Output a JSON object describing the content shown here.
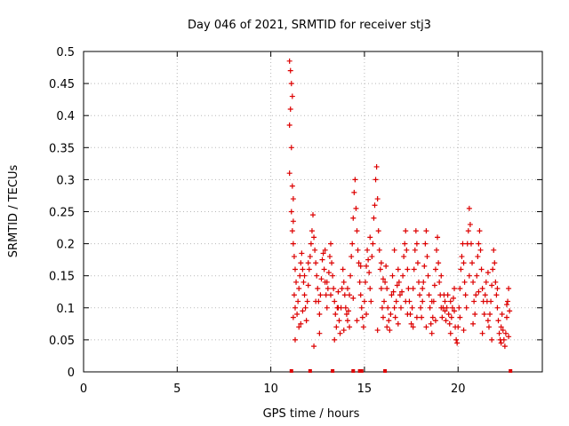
{
  "chart_data": {
    "type": "scatter",
    "title": "Day 046 of 2021, SRMTID for receiver stj3",
    "xlabel": "GPS time / hours",
    "ylabel": "SRMTID / TECUs",
    "xlim": [
      0,
      24.5
    ],
    "ylim": [
      0,
      0.5
    ],
    "xticks": [
      0,
      5,
      10,
      15,
      20
    ],
    "yticks": [
      0,
      0.05,
      0.1,
      0.15,
      0.2,
      0.25,
      0.3,
      0.35,
      0.4,
      0.45,
      0.5
    ],
    "ytick_labels": [
      "0",
      "0.05",
      "0.1",
      "0.15",
      "0.2",
      "0.25",
      "0.3",
      "0.35",
      "0.4",
      "0.45",
      "0.5"
    ],
    "xtick_labels": [
      "0",
      "5",
      "10",
      "15",
      "20"
    ],
    "grid": true,
    "marker": "+",
    "color": "#dd0000",
    "series": [
      {
        "name": "SRMTID",
        "points": [
          [
            11.0,
            0.485
          ],
          [
            11.05,
            0.47
          ],
          [
            11.1,
            0.45
          ],
          [
            11.15,
            0.43
          ],
          [
            11.05,
            0.41
          ],
          [
            11.0,
            0.385
          ],
          [
            11.1,
            0.35
          ],
          [
            11.0,
            0.31
          ],
          [
            11.15,
            0.29
          ],
          [
            11.2,
            0.27
          ],
          [
            11.1,
            0.25
          ],
          [
            11.2,
            0.235
          ],
          [
            11.15,
            0.22
          ],
          [
            11.2,
            0.2
          ],
          [
            11.25,
            0.18
          ],
          [
            11.3,
            0.16
          ],
          [
            11.35,
            0.14
          ],
          [
            11.25,
            0.12
          ],
          [
            11.3,
            0.1
          ],
          [
            11.2,
            0.085
          ],
          [
            11.4,
            0.09
          ],
          [
            11.45,
            0.11
          ],
          [
            11.5,
            0.13
          ],
          [
            11.55,
            0.15
          ],
          [
            11.6,
            0.17
          ],
          [
            11.65,
            0.185
          ],
          [
            11.7,
            0.16
          ],
          [
            11.75,
            0.14
          ],
          [
            11.5,
            0.07
          ],
          [
            11.3,
            0.05
          ],
          [
            11.8,
            0.12
          ],
          [
            11.85,
            0.1
          ],
          [
            11.9,
            0.08
          ],
          [
            11.95,
            0.11
          ],
          [
            12.0,
            0.135
          ],
          [
            12.05,
            0.16
          ],
          [
            12.1,
            0.18
          ],
          [
            12.15,
            0.2
          ],
          [
            12.2,
            0.22
          ],
          [
            12.25,
            0.245
          ],
          [
            12.3,
            0.21
          ],
          [
            12.35,
            0.19
          ],
          [
            12.4,
            0.17
          ],
          [
            12.45,
            0.15
          ],
          [
            12.5,
            0.13
          ],
          [
            12.55,
            0.11
          ],
          [
            12.6,
            0.09
          ],
          [
            12.65,
            0.12
          ],
          [
            12.7,
            0.145
          ],
          [
            12.75,
            0.175
          ],
          [
            12.8,
            0.185
          ],
          [
            12.85,
            0.16
          ],
          [
            12.9,
            0.14
          ],
          [
            12.95,
            0.12
          ],
          [
            13.0,
            0.1
          ],
          [
            13.05,
            0.13
          ],
          [
            13.1,
            0.155
          ],
          [
            13.15,
            0.18
          ],
          [
            13.2,
            0.2
          ],
          [
            13.25,
            0.17
          ],
          [
            13.3,
            0.15
          ],
          [
            13.35,
            0.13
          ],
          [
            13.4,
            0.11
          ],
          [
            13.45,
            0.09
          ],
          [
            13.5,
            0.07
          ],
          [
            13.55,
            0.1
          ],
          [
            13.6,
            0.125
          ],
          [
            13.65,
            0.08
          ],
          [
            13.7,
            0.06
          ],
          [
            13.75,
            0.1
          ],
          [
            13.8,
            0.13
          ],
          [
            13.85,
            0.16
          ],
          [
            13.9,
            0.14
          ],
          [
            13.95,
            0.12
          ],
          [
            14.0,
            0.1
          ],
          [
            14.05,
            0.09
          ],
          [
            14.1,
            0.08
          ],
          [
            14.15,
            0.095
          ],
          [
            14.2,
            0.12
          ],
          [
            14.25,
            0.15
          ],
          [
            14.3,
            0.18
          ],
          [
            14.35,
            0.2
          ],
          [
            14.4,
            0.24
          ],
          [
            14.45,
            0.28
          ],
          [
            14.5,
            0.3
          ],
          [
            14.55,
            0.255
          ],
          [
            14.6,
            0.22
          ],
          [
            14.65,
            0.19
          ],
          [
            14.7,
            0.17
          ],
          [
            14.75,
            0.14
          ],
          [
            14.8,
            0.12
          ],
          [
            14.85,
            0.1
          ],
          [
            14.9,
            0.085
          ],
          [
            14.95,
            0.07
          ],
          [
            15.0,
            0.11
          ],
          [
            15.05,
            0.14
          ],
          [
            15.1,
            0.165
          ],
          [
            15.15,
            0.19
          ],
          [
            15.2,
            0.175
          ],
          [
            15.25,
            0.155
          ],
          [
            15.3,
            0.13
          ],
          [
            15.35,
            0.11
          ],
          [
            15.4,
            0.18
          ],
          [
            15.45,
            0.2
          ],
          [
            15.5,
            0.24
          ],
          [
            15.55,
            0.26
          ],
          [
            15.6,
            0.3
          ],
          [
            15.65,
            0.32
          ],
          [
            15.7,
            0.27
          ],
          [
            15.75,
            0.22
          ],
          [
            15.8,
            0.19
          ],
          [
            15.85,
            0.16
          ],
          [
            15.9,
            0.13
          ],
          [
            15.95,
            0.1
          ],
          [
            16.0,
            0.085
          ],
          [
            16.05,
            0.11
          ],
          [
            16.1,
            0.14
          ],
          [
            16.15,
            0.165
          ],
          [
            16.2,
            0.13
          ],
          [
            16.25,
            0.1
          ],
          [
            16.3,
            0.08
          ],
          [
            16.35,
            0.065
          ],
          [
            16.4,
            0.09
          ],
          [
            16.45,
            0.12
          ],
          [
            16.5,
            0.15
          ],
          [
            16.55,
            0.125
          ],
          [
            16.6,
            0.1
          ],
          [
            16.65,
            0.085
          ],
          [
            16.7,
            0.11
          ],
          [
            16.75,
            0.135
          ],
          [
            16.8,
            0.16
          ],
          [
            16.85,
            0.14
          ],
          [
            16.9,
            0.12
          ],
          [
            16.95,
            0.1
          ],
          [
            17.0,
            0.125
          ],
          [
            17.05,
            0.15
          ],
          [
            17.1,
            0.18
          ],
          [
            17.15,
            0.2
          ],
          [
            17.2,
            0.22
          ],
          [
            17.25,
            0.19
          ],
          [
            17.3,
            0.16
          ],
          [
            17.35,
            0.13
          ],
          [
            17.4,
            0.11
          ],
          [
            17.45,
            0.09
          ],
          [
            17.5,
            0.075
          ],
          [
            17.55,
            0.1
          ],
          [
            17.6,
            0.13
          ],
          [
            17.65,
            0.16
          ],
          [
            17.7,
            0.19
          ],
          [
            17.75,
            0.22
          ],
          [
            17.8,
            0.2
          ],
          [
            17.85,
            0.17
          ],
          [
            17.9,
            0.14
          ],
          [
            17.95,
            0.12
          ],
          [
            18.0,
            0.1
          ],
          [
            18.05,
            0.085
          ],
          [
            18.1,
            0.11
          ],
          [
            18.15,
            0.14
          ],
          [
            18.2,
            0.165
          ],
          [
            18.25,
            0.2
          ],
          [
            18.3,
            0.22
          ],
          [
            18.35,
            0.18
          ],
          [
            18.4,
            0.15
          ],
          [
            18.45,
            0.12
          ],
          [
            18.5,
            0.1
          ],
          [
            18.55,
            0.075
          ],
          [
            18.6,
            0.06
          ],
          [
            18.65,
            0.085
          ],
          [
            18.7,
            0.11
          ],
          [
            18.75,
            0.135
          ],
          [
            18.8,
            0.16
          ],
          [
            18.85,
            0.19
          ],
          [
            18.9,
            0.21
          ],
          [
            18.95,
            0.17
          ],
          [
            19.0,
            0.14
          ],
          [
            19.05,
            0.12
          ],
          [
            19.1,
            0.1
          ],
          [
            19.15,
            0.085
          ],
          [
            19.2,
            0.1
          ],
          [
            19.25,
            0.12
          ],
          [
            19.3,
            0.095
          ],
          [
            19.35,
            0.08
          ],
          [
            19.4,
            0.1
          ],
          [
            19.45,
            0.12
          ],
          [
            19.5,
            0.09
          ],
          [
            19.55,
            0.075
          ],
          [
            19.6,
            0.06
          ],
          [
            19.65,
            0.085
          ],
          [
            19.7,
            0.1
          ],
          [
            19.75,
            0.115
          ],
          [
            19.8,
            0.095
          ],
          [
            19.85,
            0.07
          ],
          [
            19.9,
            0.05
          ],
          [
            19.95,
            0.045
          ],
          [
            20.0,
            0.07
          ],
          [
            20.05,
            0.1
          ],
          [
            20.1,
            0.13
          ],
          [
            20.15,
            0.16
          ],
          [
            20.2,
            0.18
          ],
          [
            20.25,
            0.2
          ],
          [
            20.3,
            0.17
          ],
          [
            20.35,
            0.14
          ],
          [
            20.4,
            0.12
          ],
          [
            20.45,
            0.1
          ],
          [
            20.5,
            0.2
          ],
          [
            20.55,
            0.22
          ],
          [
            20.6,
            0.255
          ],
          [
            20.65,
            0.23
          ],
          [
            20.7,
            0.2
          ],
          [
            20.75,
            0.17
          ],
          [
            20.8,
            0.14
          ],
          [
            20.85,
            0.11
          ],
          [
            20.9,
            0.09
          ],
          [
            20.95,
            0.12
          ],
          [
            21.0,
            0.15
          ],
          [
            21.05,
            0.18
          ],
          [
            21.1,
            0.2
          ],
          [
            21.15,
            0.22
          ],
          [
            21.2,
            0.19
          ],
          [
            21.25,
            0.16
          ],
          [
            21.3,
            0.13
          ],
          [
            21.35,
            0.11
          ],
          [
            21.4,
            0.09
          ],
          [
            21.45,
            0.12
          ],
          [
            21.5,
            0.14
          ],
          [
            21.55,
            0.11
          ],
          [
            21.6,
            0.08
          ],
          [
            21.65,
            0.07
          ],
          [
            21.7,
            0.09
          ],
          [
            21.75,
            0.11
          ],
          [
            21.8,
            0.135
          ],
          [
            21.85,
            0.16
          ],
          [
            21.9,
            0.19
          ],
          [
            21.95,
            0.17
          ],
          [
            22.0,
            0.14
          ],
          [
            22.05,
            0.12
          ],
          [
            22.1,
            0.1
          ],
          [
            22.15,
            0.08
          ],
          [
            22.2,
            0.06
          ],
          [
            22.25,
            0.05
          ],
          [
            22.3,
            0.07
          ],
          [
            22.35,
            0.09
          ],
          [
            22.4,
            0.065
          ],
          [
            22.45,
            0.05
          ],
          [
            22.5,
            0.04
          ],
          [
            22.55,
            0.06
          ],
          [
            22.6,
            0.085
          ],
          [
            22.65,
            0.11
          ],
          [
            22.7,
            0.13
          ],
          [
            22.75,
            0.095
          ],
          [
            11.6,
            0.075
          ],
          [
            11.7,
            0.095
          ],
          [
            12.3,
            0.04
          ],
          [
            12.6,
            0.06
          ],
          [
            13.0,
            0.14
          ],
          [
            13.4,
            0.05
          ],
          [
            13.9,
            0.065
          ],
          [
            14.2,
            0.07
          ],
          [
            14.6,
            0.08
          ],
          [
            15.1,
            0.09
          ],
          [
            15.7,
            0.065
          ],
          [
            16.2,
            0.07
          ],
          [
            16.8,
            0.075
          ],
          [
            17.3,
            0.09
          ],
          [
            17.8,
            0.085
          ],
          [
            18.3,
            0.07
          ],
          [
            18.8,
            0.08
          ],
          [
            19.3,
            0.11
          ],
          [
            19.8,
            0.13
          ],
          [
            20.3,
            0.065
          ],
          [
            20.8,
            0.075
          ],
          [
            21.3,
            0.06
          ],
          [
            21.8,
            0.05
          ],
          [
            22.3,
            0.045
          ],
          [
            22.7,
            0.055
          ],
          [
            12.0,
            0.17
          ],
          [
            12.9,
            0.19
          ],
          [
            13.6,
            0.1
          ],
          [
            14.1,
            0.13
          ],
          [
            14.8,
            0.165
          ],
          [
            15.3,
            0.21
          ],
          [
            15.9,
            0.17
          ],
          [
            16.6,
            0.19
          ],
          [
            17.2,
            0.11
          ],
          [
            17.6,
            0.07
          ],
          [
            18.1,
            0.13
          ],
          [
            18.6,
            0.11
          ],
          [
            19.1,
            0.15
          ],
          [
            19.6,
            0.11
          ],
          [
            20.1,
            0.085
          ],
          [
            20.6,
            0.15
          ],
          [
            21.1,
            0.125
          ],
          [
            21.6,
            0.155
          ],
          [
            22.1,
            0.13
          ],
          [
            22.6,
            0.105
          ],
          [
            11.8,
            0.15
          ],
          [
            12.4,
            0.11
          ],
          [
            13.2,
            0.12
          ],
          [
            14.4,
            0.115
          ],
          [
            16.0,
            0.145
          ]
        ]
      }
    ],
    "x_axis_marks": [
      11.1,
      12.1,
      13.3,
      14.4,
      14.75,
      14.85,
      16.1,
      22.8
    ]
  }
}
